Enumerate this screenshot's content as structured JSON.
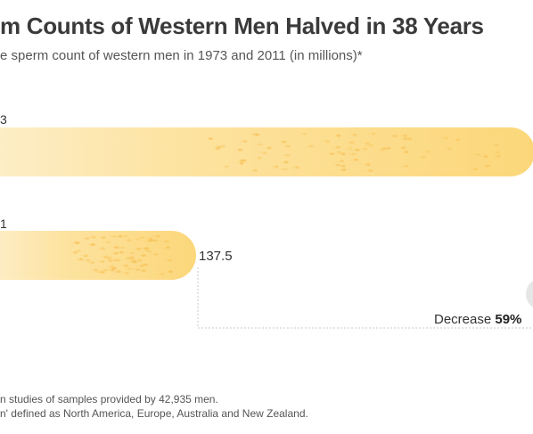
{
  "chart_data": {
    "type": "bar",
    "orientation": "horizontal",
    "title": "m Counts of Western Men Halved in 38 Years",
    "subtitle": "e sperm count of western men in 1973 and 2011 (in millions)*",
    "categories": [
      "3",
      "1"
    ],
    "values": [
      null,
      137.5
    ],
    "value_labels": [
      "",
      "137.5"
    ],
    "annotation": {
      "label": "Decrease",
      "value": "59%"
    },
    "colors": {
      "bar_fill": "#fcdc86",
      "bar_light": "#fdeec3",
      "bar_dark": "#f7c35a",
      "guide_line": "#c8c8c8"
    },
    "grid": false,
    "legend": "none"
  },
  "notes": [
    "n studies of samples provided by 42,935 men.",
    "n' defined as North America, Europe, Australia and New Zealand."
  ],
  "decrease_prefix": "Decrease",
  "decrease_value": "59%"
}
